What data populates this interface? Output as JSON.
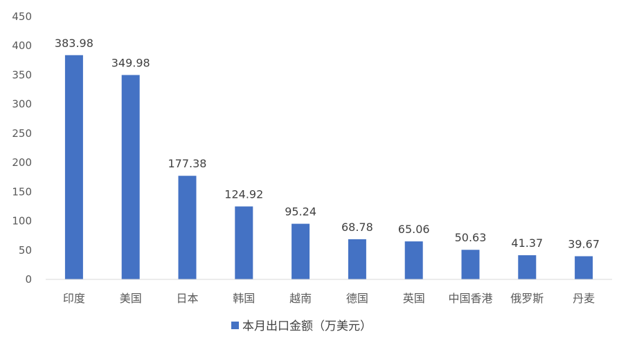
{
  "chart_data": {
    "type": "bar",
    "categories": [
      "印度",
      "美国",
      "日本",
      "韩国",
      "越南",
      "德国",
      "英国",
      "中国香港",
      "俄罗斯",
      "丹麦"
    ],
    "series": [
      {
        "name": "本月出口金额（万美元）",
        "values": [
          383.98,
          349.98,
          177.38,
          124.92,
          95.24,
          68.78,
          65.06,
          50.63,
          41.37,
          39.67
        ],
        "color": "#4472C4"
      }
    ],
    "data_labels": [
      "383.98",
      "349.98",
      "177.38",
      "124.92",
      "95.24",
      "68.78",
      "65.06",
      "50.63",
      "41.37",
      "39.67"
    ],
    "yticks": [
      "0",
      "50",
      "100",
      "150",
      "200",
      "250",
      "300",
      "350",
      "400",
      "450"
    ],
    "ylim": [
      0,
      450
    ],
    "grid": false,
    "legend": "bottom",
    "axis_color": "#D9D9D9"
  }
}
